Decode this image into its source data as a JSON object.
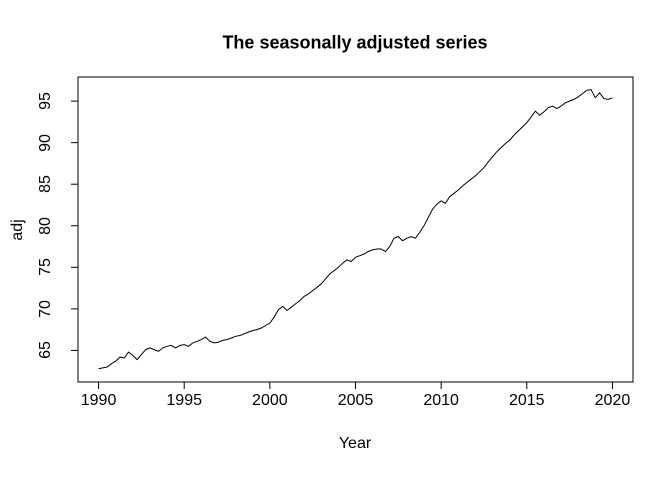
{
  "chart_data": {
    "type": "line",
    "title": "The seasonally adjusted series",
    "xlabel": "Year",
    "ylabel": "adj",
    "xlim": [
      1988.8,
      2021.2
    ],
    "ylim": [
      61.2,
      97.9
    ],
    "xticks": [
      1990,
      1995,
      2000,
      2005,
      2010,
      2015,
      2020
    ],
    "yticks": [
      65,
      70,
      75,
      80,
      85,
      90,
      95
    ],
    "xtick_labels": [
      "1990",
      "1995",
      "2000",
      "2005",
      "2010",
      "2015",
      "2020"
    ],
    "ytick_labels": [
      "65",
      "70",
      "75",
      "80",
      "85",
      "90",
      "95"
    ],
    "grid": false,
    "legend": "none",
    "background_color": "#ffffff",
    "line_color": "#000000",
    "frame_color": "#000000",
    "series": [
      {
        "name": "adj",
        "x_start": 1990,
        "x_step": 0.25,
        "values": [
          62.8,
          62.9,
          63.0,
          63.4,
          63.7,
          64.2,
          64.1,
          64.8,
          64.4,
          63.9,
          64.5,
          65.1,
          65.3,
          65.1,
          64.9,
          65.3,
          65.5,
          65.6,
          65.3,
          65.6,
          65.7,
          65.5,
          65.9,
          66.1,
          66.3,
          66.6,
          66.1,
          65.9,
          66.0,
          66.2,
          66.3,
          66.5,
          66.7,
          66.8,
          67.0,
          67.2,
          67.4,
          67.5,
          67.7,
          68.0,
          68.3,
          69.0,
          69.9,
          70.3,
          69.8,
          70.2,
          70.6,
          71.0,
          71.5,
          71.8,
          72.2,
          72.6,
          73.0,
          73.6,
          74.2,
          74.6,
          75.0,
          75.5,
          75.9,
          75.7,
          76.2,
          76.4,
          76.6,
          76.9,
          77.1,
          77.2,
          77.2,
          76.9,
          77.5,
          78.5,
          78.7,
          78.2,
          78.5,
          78.7,
          78.5,
          79.2,
          80.0,
          81.0,
          82.0,
          82.6,
          83.0,
          82.7,
          83.5,
          83.9,
          84.3,
          84.8,
          85.2,
          85.6,
          86.0,
          86.5,
          87.0,
          87.7,
          88.3,
          88.9,
          89.4,
          89.9,
          90.3,
          90.9,
          91.4,
          91.9,
          92.4,
          93.1,
          93.8,
          93.3,
          93.7,
          94.2,
          94.4,
          94.1,
          94.4,
          94.8,
          95.0,
          95.2,
          95.5,
          95.9,
          96.3,
          96.4,
          95.4,
          96.0,
          95.3,
          95.2,
          95.4
        ]
      }
    ]
  }
}
